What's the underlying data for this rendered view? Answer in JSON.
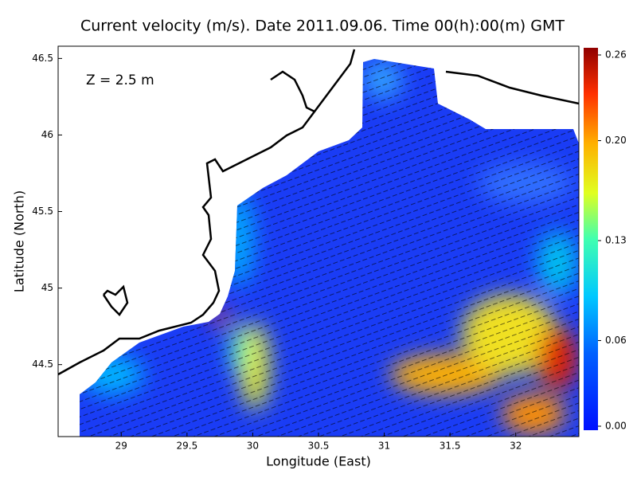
{
  "chart_data": {
    "type": "vector-field-map",
    "title": "Current velocity (m/s). Date 2011.09.06. Time 00(h):00(m) GMT",
    "annotation": "Z = 2.5 m",
    "x_label": "Longitude (East)",
    "y_label": "Latitude (North)",
    "xlim": [
      28.52,
      32.48
    ],
    "ylim": [
      44.03,
      46.58
    ],
    "xticks": [
      29,
      29.5,
      30,
      30.5,
      31,
      31.5,
      32
    ],
    "yticks": [
      44.5,
      45,
      45.5,
      46,
      46.5
    ],
    "colorbar": {
      "clim": [
        0,
        0.26
      ],
      "ticks": [
        {
          "value": 0,
          "label": "0.00"
        },
        0.06,
        0.13,
        {
          "value": 0.2,
          "label": "0.20"
        },
        0.26
      ]
    }
  }
}
